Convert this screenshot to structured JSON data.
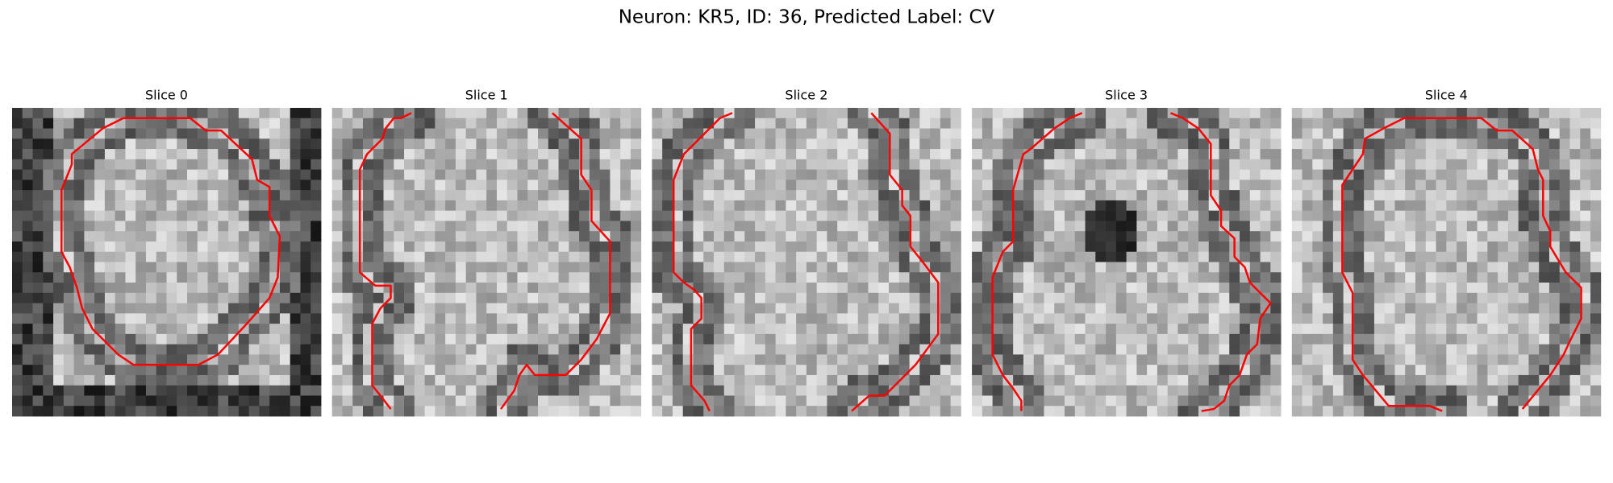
{
  "title": "Neuron: KR5, ID: 36, Predicted Label: CV",
  "panels": [
    {
      "title": "Slice 0"
    },
    {
      "title": "Slice 1"
    },
    {
      "title": "Slice 2"
    },
    {
      "title": "Slice 3"
    },
    {
      "title": "Slice 4"
    }
  ]
}
